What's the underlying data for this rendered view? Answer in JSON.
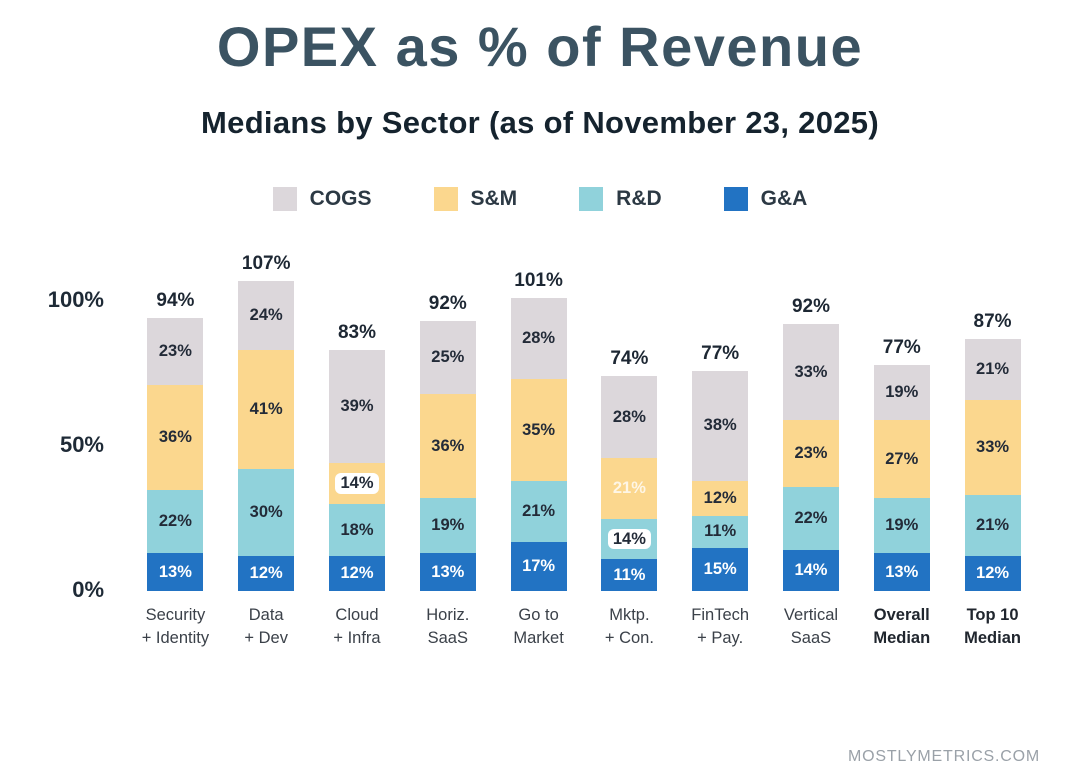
{
  "title": "OPEX as % of Revenue",
  "subtitle": "Medians by Sector (as of November 23, 2025)",
  "watermark": "MOSTLYMETRICS.COM",
  "colors": {
    "cogs": "#dcd7db",
    "sm": "#fbd78e",
    "rd": "#90d2db",
    "ga": "#2273c3"
  },
  "chart_data": {
    "type": "bar",
    "stacked": true,
    "title": "OPEX as % of Revenue",
    "subtitle": "Medians by Sector (as of November 23, 2025)",
    "unit": "%",
    "ylim": [
      0,
      110
    ],
    "grid": false,
    "legend_position": "top",
    "series_order": [
      "cogs",
      "sm",
      "rd",
      "ga"
    ],
    "legend": [
      {
        "key": "cogs",
        "label": "COGS"
      },
      {
        "key": "sm",
        "label": "S&M"
      },
      {
        "key": "rd",
        "label": "R&D"
      },
      {
        "key": "ga",
        "label": "G&A"
      }
    ],
    "yticks": [
      {
        "label": "100%",
        "value": 100
      },
      {
        "label": "50%",
        "value": 50
      },
      {
        "label": "0%",
        "value": 0
      }
    ],
    "bars": [
      {
        "category": "Security + Identity",
        "label_lines": [
          "Security",
          "+ Identity"
        ],
        "bold": false,
        "total": 94,
        "values": {
          "cogs": 23,
          "sm": 36,
          "rd": 22,
          "ga": 13
        }
      },
      {
        "category": "Data + Dev",
        "label_lines": [
          "Data",
          "+ Dev"
        ],
        "bold": false,
        "total": 107,
        "values": {
          "cogs": 24,
          "sm": 41,
          "rd": 30,
          "ga": 12
        }
      },
      {
        "category": "Cloud + Infra",
        "label_lines": [
          "Cloud",
          "+ Infra"
        ],
        "bold": false,
        "total": 83,
        "values": {
          "cogs": 39,
          "sm": 14,
          "rd": 18,
          "ga": 12
        },
        "label_styles": {
          "sm": "pill"
        }
      },
      {
        "category": "Horiz. SaaS",
        "label_lines": [
          "Horiz.",
          "SaaS"
        ],
        "bold": false,
        "total": 92,
        "values": {
          "cogs": 25,
          "sm": 36,
          "rd": 19,
          "ga": 13
        }
      },
      {
        "category": "Go to Market",
        "label_lines": [
          "Go to",
          "Market"
        ],
        "bold": false,
        "total": 101,
        "values": {
          "cogs": 28,
          "sm": 35,
          "rd": 21,
          "ga": 17
        }
      },
      {
        "category": "Mktp. + Con.",
        "label_lines": [
          "Mktp.",
          "+ Con."
        ],
        "bold": false,
        "total": 74,
        "values": {
          "cogs": 28,
          "sm": 21,
          "rd": 14,
          "ga": 11
        },
        "label_styles": {
          "sm": "faint",
          "rd": "pill"
        }
      },
      {
        "category": "FinTech + Pay.",
        "label_lines": [
          "FinTech",
          "+ Pay."
        ],
        "bold": false,
        "total": 77,
        "values": {
          "cogs": 38,
          "sm": 12,
          "rd": 11,
          "ga": 15
        }
      },
      {
        "category": "Vertical SaaS",
        "label_lines": [
          "Vertical",
          "SaaS"
        ],
        "bold": false,
        "total": 92,
        "values": {
          "cogs": 33,
          "sm": 23,
          "rd": 22,
          "ga": 14
        }
      },
      {
        "category": "Overall Median",
        "label_lines": [
          "Overall",
          "Median"
        ],
        "bold": true,
        "total": 77,
        "values": {
          "cogs": 19,
          "sm": 27,
          "rd": 19,
          "ga": 13
        }
      },
      {
        "category": "Top 10 Median",
        "label_lines": [
          "Top 10",
          "Median"
        ],
        "bold": true,
        "total": 87,
        "values": {
          "cogs": 21,
          "sm": 33,
          "rd": 21,
          "ga": 12
        }
      }
    ]
  }
}
